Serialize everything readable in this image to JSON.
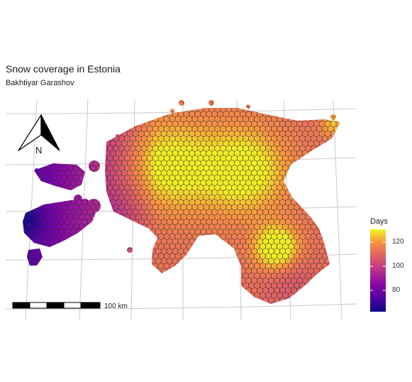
{
  "header": {
    "title": "Snow coverage in Estonia",
    "subtitle": "Bakhtiyar Garashov"
  },
  "north_arrow": {
    "label": "N"
  },
  "scale_bar": {
    "label": "100 km"
  },
  "legend": {
    "title": "Days",
    "ticks": [
      "120",
      "100",
      "80"
    ],
    "tick_values": [
      120,
      100,
      80
    ],
    "range": [
      63,
      132
    ],
    "palette": "plasma"
  },
  "colors": {
    "low": "#1b0c84",
    "mid": "#cc4778",
    "high": "#f0f921",
    "grid": "#c8c8c8"
  }
}
